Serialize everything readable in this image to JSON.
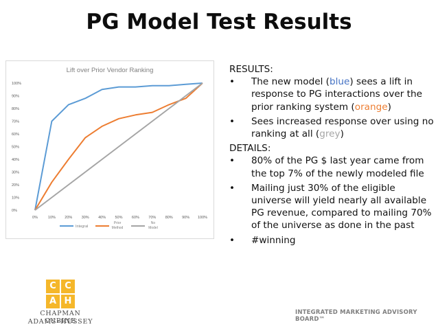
{
  "slide": {
    "title": "PG Model Test Results"
  },
  "chart_data": {
    "type": "line",
    "title": "Lift over Prior Vendor Ranking",
    "x": [
      "0%",
      "10%",
      "20%",
      "30%",
      "40%",
      "50%",
      "60%",
      "70%",
      "80%",
      "90%",
      "100%"
    ],
    "y_ticks": [
      "0%",
      "10%",
      "20%",
      "30%",
      "40%",
      "50%",
      "60%",
      "70%",
      "80%",
      "90%",
      "100%"
    ],
    "ylim": [
      0,
      100
    ],
    "series": [
      {
        "name": "Integral",
        "color": "#5b9bd5",
        "values": [
          0,
          70,
          83,
          88,
          95,
          97,
          97,
          98,
          98,
          99,
          100
        ]
      },
      {
        "name": "Prior Method",
        "color": "#ed7d31",
        "values": [
          0,
          22,
          40,
          57,
          66,
          72,
          75,
          77,
          83,
          88,
          100
        ]
      },
      {
        "name": "No Model",
        "color": "#a5a5a5",
        "values": [
          0,
          10,
          20,
          30,
          40,
          50,
          60,
          70,
          80,
          90,
          100
        ]
      }
    ],
    "legend": "bottom",
    "grid": false
  },
  "results": {
    "heading": "RESULTS:",
    "bullet_char": "•",
    "item1": {
      "a": "The new model (",
      "b": "blue",
      "c": ") sees a lift in response to PG interactions over the prior ranking system (",
      "d": "orange",
      "e": ")"
    },
    "item2": {
      "a": "Sees increased response over using no ranking at all (",
      "b": "grey",
      "c": ")"
    }
  },
  "details": {
    "heading": "DETAILS:",
    "items": [
      "80% of the PG $ last year came from the top 7% of the newly modeled file",
      "Mailing just 30% of the eligible universe will yield nearly all available PG revenue, compared to mailing 70% of the universe as done in the past",
      "#winning"
    ]
  },
  "logo": {
    "tiles": [
      "C",
      "C",
      "A",
      "H"
    ],
    "line1": "CHAPMAN CUBINE",
    "line2a": "ADAMS",
    "line2amp": "+",
    "line2b": "HUSSEY"
  },
  "footer": {
    "brand": "INTEGRATED MARKETING ADVISORY BOARD™"
  }
}
